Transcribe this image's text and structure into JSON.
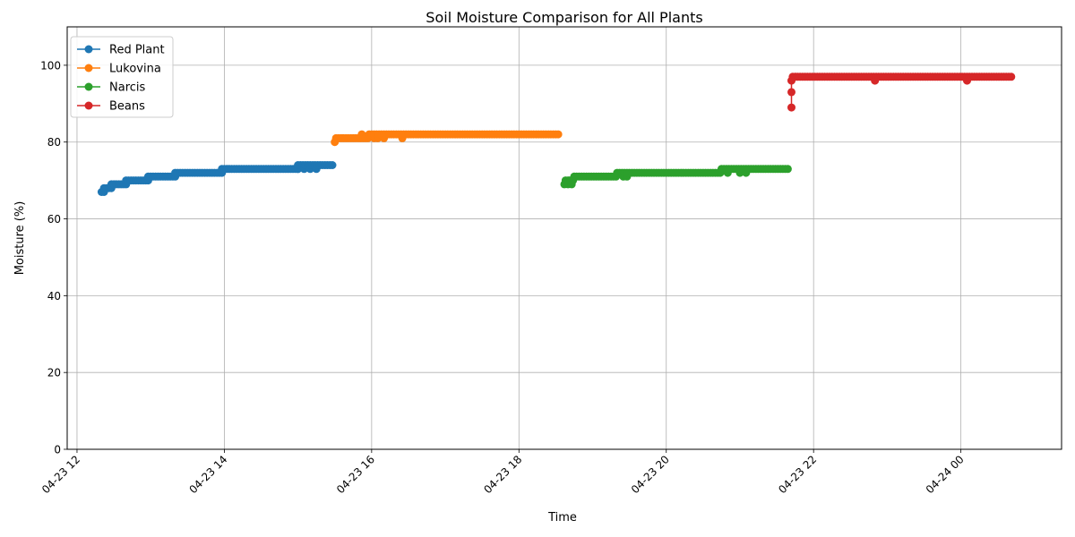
{
  "chart_data": {
    "type": "line",
    "title": "Soil Moisture Comparison for All Plants",
    "xlabel": "Time",
    "ylabel": "Moisture (%)",
    "ylim": [
      0,
      110
    ],
    "xlim": [
      "2025-04-23 11:52",
      "2025-04-24 01:22"
    ],
    "y_ticks": [
      0,
      20,
      40,
      60,
      80,
      100
    ],
    "x_ticks": [
      {
        "t": "2025-04-23 12:00",
        "label": "04-23 12"
      },
      {
        "t": "2025-04-23 14:00",
        "label": "04-23 14"
      },
      {
        "t": "2025-04-23 16:00",
        "label": "04-23 16"
      },
      {
        "t": "2025-04-23 18:00",
        "label": "04-23 18"
      },
      {
        "t": "2025-04-23 20:00",
        "label": "04-23 20"
      },
      {
        "t": "2025-04-23 22:00",
        "label": "04-23 22"
      },
      {
        "t": "2025-04-24 00:00",
        "label": "04-24 00"
      }
    ],
    "grid": true,
    "legend_position": "top-left",
    "series": [
      {
        "name": "Red Plant",
        "color": "#1f77b4",
        "segments": [
          {
            "start": "2025-04-23 12:20",
            "end": "2025-04-23 12:22",
            "value": 67
          },
          {
            "start": "2025-04-23 12:22",
            "end": "2025-04-23 12:28",
            "value": 68
          },
          {
            "start": "2025-04-23 12:28",
            "end": "2025-04-23 12:40",
            "value": 69
          },
          {
            "start": "2025-04-23 12:40",
            "end": "2025-04-23 12:58",
            "value": 70
          },
          {
            "start": "2025-04-23 12:58",
            "end": "2025-04-23 13:20",
            "value": 71
          },
          {
            "start": "2025-04-23 13:20",
            "end": "2025-04-23 13:58",
            "value": 72
          },
          {
            "start": "2025-04-23 13:58",
            "end": "2025-04-23 15:00",
            "value": 73
          },
          {
            "start": "2025-04-23 15:00",
            "end": "2025-04-23 15:28",
            "value": 74
          }
        ],
        "extra_points": [
          {
            "t": "2025-04-23 15:00",
            "value": 73
          },
          {
            "t": "2025-04-23 15:05",
            "value": 73
          },
          {
            "t": "2025-04-23 15:10",
            "value": 73
          },
          {
            "t": "2025-04-23 15:15",
            "value": 73
          }
        ]
      },
      {
        "name": "Lukovina",
        "color": "#ff7f0e",
        "segments": [
          {
            "start": "2025-04-23 15:30",
            "end": "2025-04-23 15:31",
            "value": 80
          },
          {
            "start": "2025-04-23 15:31",
            "end": "2025-04-23 15:58",
            "value": 81
          },
          {
            "start": "2025-04-23 15:58",
            "end": "2025-04-23 18:33",
            "value": 82
          }
        ],
        "extra_points": [
          {
            "t": "2025-04-23 15:52",
            "value": 82
          },
          {
            "t": "2025-04-23 16:02",
            "value": 81
          },
          {
            "t": "2025-04-23 16:05",
            "value": 81
          },
          {
            "t": "2025-04-23 16:10",
            "value": 81
          },
          {
            "t": "2025-04-23 16:25",
            "value": 81
          }
        ]
      },
      {
        "name": "Narcis",
        "color": "#2ca02c",
        "segments": [
          {
            "start": "2025-04-23 18:37",
            "end": "2025-04-23 18:38",
            "value": 69
          },
          {
            "start": "2025-04-23 18:38",
            "end": "2025-04-23 18:45",
            "value": 70
          },
          {
            "start": "2025-04-23 18:45",
            "end": "2025-04-23 19:20",
            "value": 71
          },
          {
            "start": "2025-04-23 19:20",
            "end": "2025-04-23 20:45",
            "value": 72
          },
          {
            "start": "2025-04-23 20:45",
            "end": "2025-04-23 21:40",
            "value": 73
          }
        ],
        "extra_points": [
          {
            "t": "2025-04-23 18:40",
            "value": 69
          },
          {
            "t": "2025-04-23 18:43",
            "value": 69
          },
          {
            "t": "2025-04-23 19:25",
            "value": 71
          },
          {
            "t": "2025-04-23 19:28",
            "value": 71
          },
          {
            "t": "2025-04-23 20:50",
            "value": 72
          },
          {
            "t": "2025-04-23 21:00",
            "value": 72
          },
          {
            "t": "2025-04-23 21:05",
            "value": 72
          }
        ]
      },
      {
        "name": "Beans",
        "color": "#d62728",
        "segments": [
          {
            "start": "2025-04-23 21:43",
            "end": "2025-04-24 00:42",
            "value": 97
          }
        ],
        "extra_points": [
          {
            "t": "2025-04-23 21:42",
            "value": 89
          },
          {
            "t": "2025-04-23 21:42",
            "value": 93
          },
          {
            "t": "2025-04-23 21:42",
            "value": 96
          },
          {
            "t": "2025-04-23 22:50",
            "value": 96
          },
          {
            "t": "2025-04-24 00:05",
            "value": 96
          }
        ]
      }
    ]
  }
}
